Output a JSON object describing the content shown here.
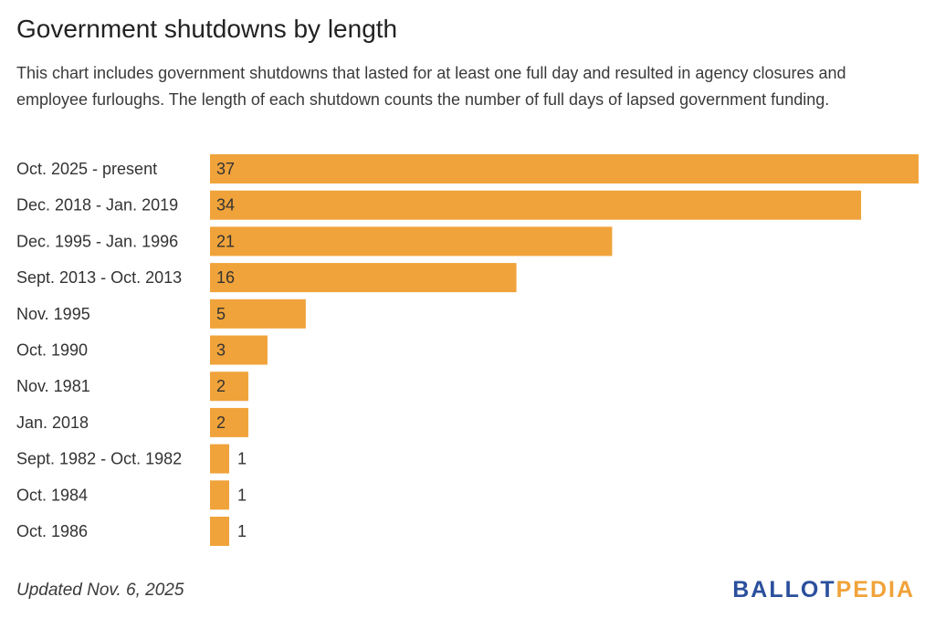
{
  "title": "Government shutdowns by length",
  "subtitle": "This chart includes government shutdowns that lasted for at least one full day and resulted in agency closures and employee furloughs. The length of each shutdown counts the number of full days of lapsed government funding.",
  "footer": "Updated Nov. 6, 2025",
  "logo": {
    "part1": "BALLOT",
    "part2": "PEDIA",
    "color1": "#2a4f9c",
    "color2": "#f0a33a"
  },
  "chart_data": {
    "type": "bar",
    "orientation": "horizontal",
    "bar_color": "#f0a33a",
    "categories": [
      "Oct. 2025 - present",
      "Dec. 2018 - Jan. 2019",
      "Dec. 1995 - Jan. 1996",
      "Sept. 2013 - Oct. 2013",
      "Nov. 1995",
      "Oct. 1990",
      "Nov. 1981",
      "Jan. 2018",
      "Sept. 1982 - Oct. 1982",
      "Oct. 1984",
      "Oct. 1986"
    ],
    "values": [
      37,
      34,
      21,
      16,
      5,
      3,
      2,
      2,
      1,
      1,
      1
    ],
    "xlim": [
      0,
      37
    ],
    "grid": false,
    "data_labels": true
  }
}
